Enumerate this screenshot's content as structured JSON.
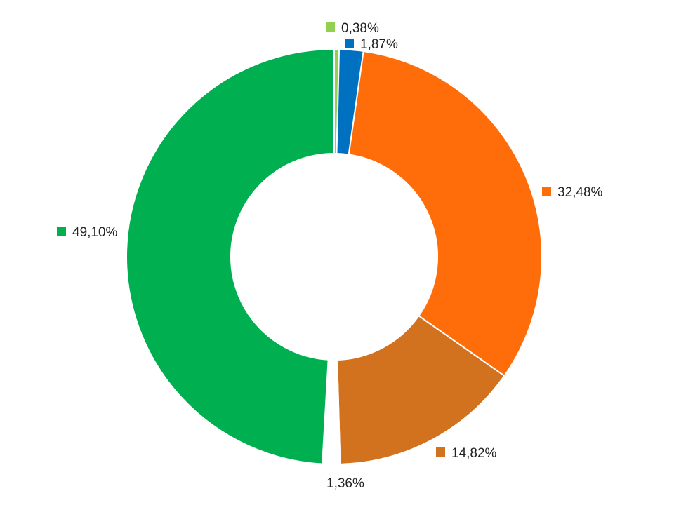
{
  "chart_data": {
    "type": "pie",
    "title": "",
    "hole": true,
    "legend": "none",
    "slices": [
      {
        "label": "0,38%",
        "value": 0.38,
        "color": "#92d050"
      },
      {
        "label": "1,87%",
        "value": 1.87,
        "color": "#0070c0"
      },
      {
        "label": "32,48%",
        "value": 32.48,
        "color": "#ff6d0a"
      },
      {
        "label": "14,82%",
        "value": 14.82,
        "color": "#d2711e"
      },
      {
        "label": "1,36%",
        "value": 1.36,
        "color": "#ffffff"
      },
      {
        "label": "49,10%",
        "value": 49.1,
        "color": "#00b050"
      }
    ]
  }
}
